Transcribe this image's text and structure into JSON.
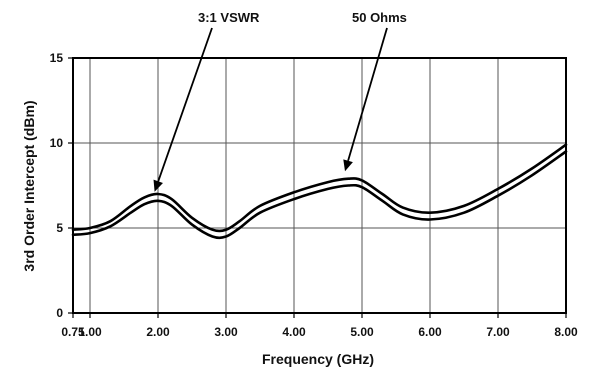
{
  "chart_data": {
    "type": "line",
    "xlabel": "Frequency (GHz)",
    "ylabel": "3rd Order Intercept (dBm)",
    "x_ticks": [
      0.75,
      1.0,
      2.0,
      3.0,
      4.0,
      5.0,
      6.0,
      7.0,
      8.0
    ],
    "x_tick_labels": [
      "0.75",
      "1.00",
      "2.00",
      "3.00",
      "4.00",
      "5.00",
      "6.00",
      "7.00",
      "8.00"
    ],
    "y_ticks": [
      0,
      5,
      10,
      15
    ],
    "y_tick_labels": [
      "0",
      "5",
      "10",
      "15"
    ],
    "xlim": [
      0.75,
      8.0
    ],
    "ylim": [
      0,
      15
    ],
    "grid": true,
    "series": [
      {
        "name": "50 Ohms",
        "x": [
          0.75,
          1.0,
          1.3,
          1.6,
          1.8,
          2.0,
          2.2,
          2.5,
          2.8,
          3.0,
          3.2,
          3.5,
          4.0,
          4.5,
          4.8,
          5.0,
          5.3,
          5.6,
          6.0,
          6.5,
          7.0,
          7.5,
          8.0
        ],
        "y": [
          4.9,
          5.0,
          5.4,
          6.3,
          6.8,
          7.0,
          6.7,
          5.6,
          4.9,
          4.9,
          5.4,
          6.3,
          7.1,
          7.7,
          7.9,
          7.8,
          7.0,
          6.2,
          5.9,
          6.3,
          7.3,
          8.5,
          9.9
        ]
      },
      {
        "name": "3:1 VSWR",
        "x": [
          0.75,
          1.0,
          1.3,
          1.6,
          1.8,
          2.0,
          2.2,
          2.5,
          2.8,
          3.0,
          3.2,
          3.5,
          4.0,
          4.5,
          4.8,
          5.0,
          5.3,
          5.6,
          6.0,
          6.5,
          7.0,
          7.5,
          8.0
        ],
        "y": [
          4.6,
          4.7,
          5.1,
          5.9,
          6.4,
          6.6,
          6.3,
          5.2,
          4.5,
          4.5,
          5.0,
          5.9,
          6.7,
          7.3,
          7.5,
          7.4,
          6.6,
          5.8,
          5.5,
          5.9,
          6.9,
          8.1,
          9.5
        ]
      }
    ],
    "annotations": [
      {
        "text": "3:1 VSWR",
        "points_to_x": 1.95,
        "points_to_y": 6.9
      },
      {
        "text": "50 Ohms",
        "points_to_x": 4.75,
        "points_to_y": 8.1
      }
    ]
  }
}
